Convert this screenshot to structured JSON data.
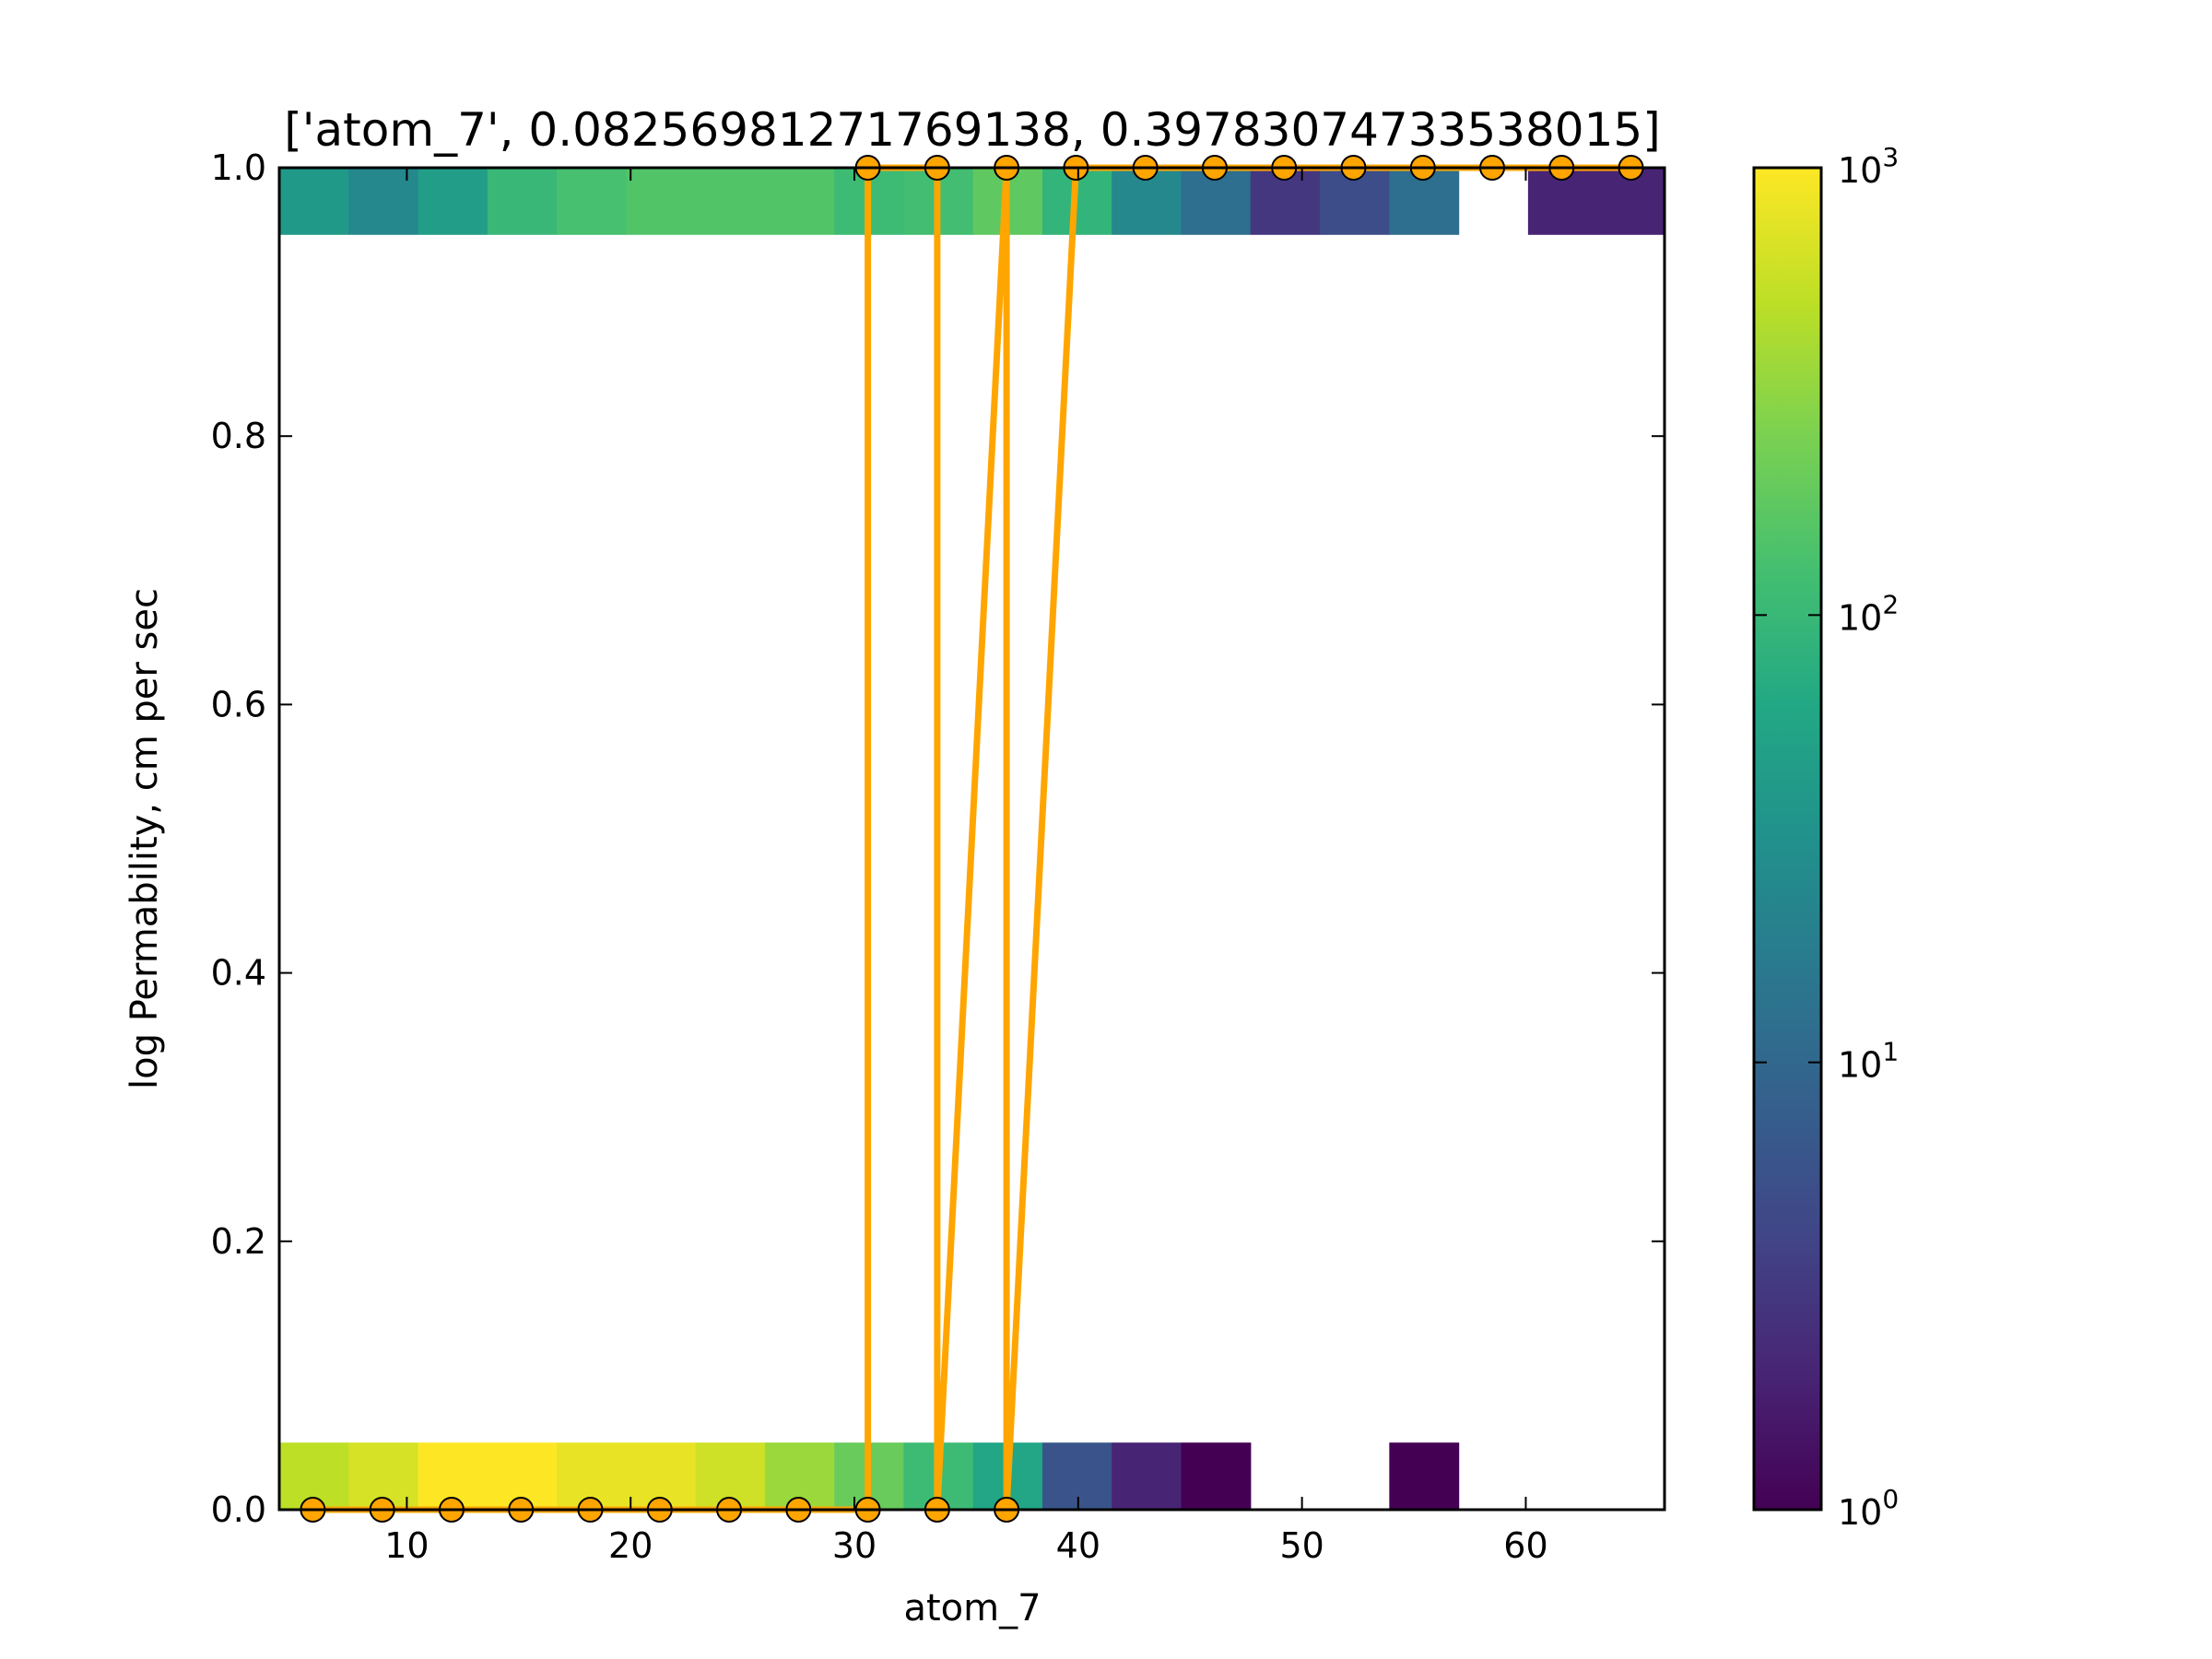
{
  "chart_data": {
    "type": "heatmap",
    "title": "['atom_7', 0.08256981271769138, 0.39783074733538015]",
    "xlabel": "atom_7",
    "ylabel": "log Permability, cm per sec",
    "xlim": [
      4.3,
      66.2
    ],
    "ylim": [
      0.0,
      1.0
    ],
    "x_ticks": [
      {
        "value": 10,
        "label": "10"
      },
      {
        "value": 20,
        "label": "20"
      },
      {
        "value": 30,
        "label": "30"
      },
      {
        "value": 40,
        "label": "40"
      },
      {
        "value": 50,
        "label": "50"
      },
      {
        "value": 60,
        "label": "60"
      }
    ],
    "y_ticks": [
      {
        "value": 0.0,
        "label": "0.0"
      },
      {
        "value": 0.2,
        "label": "0.2"
      },
      {
        "value": 0.4,
        "label": "0.4"
      },
      {
        "value": 0.6,
        "label": "0.6"
      },
      {
        "value": 0.8,
        "label": "0.8"
      },
      {
        "value": 1.0,
        "label": "1.0"
      }
    ],
    "heatmap": {
      "bin_edges_x": [
        4.3,
        7.4,
        10.5,
        13.6,
        16.7,
        19.8,
        22.9,
        26.0,
        29.1,
        32.2,
        35.3,
        38.4,
        41.5,
        44.6,
        47.7,
        50.8,
        53.9,
        57.0,
        60.1,
        63.2,
        66.3
      ],
      "row_bottom": {
        "y_range": [
          0.0,
          0.05
        ],
        "counts": [
          500,
          650,
          1000,
          1000,
          800,
          800,
          600,
          350,
          200,
          110,
          60,
          6,
          2,
          1,
          null,
          null,
          1,
          null,
          null,
          null
        ]
      },
      "row_top": {
        "y_range": [
          0.95,
          1.0
        ],
        "counts": [
          40,
          25,
          45,
          100,
          130,
          150,
          150,
          150,
          110,
          120,
          180,
          90,
          25,
          12,
          3,
          5,
          12,
          null,
          2,
          2
        ]
      },
      "colormap": "viridis",
      "scale": "log"
    },
    "colorbar": {
      "scale": "log",
      "min": 1,
      "max": 1000,
      "ticks": [
        {
          "value": 1,
          "base": "10",
          "exp": "0"
        },
        {
          "value": 10,
          "base": "10",
          "exp": "1"
        },
        {
          "value": 100,
          "base": "10",
          "exp": "2"
        },
        {
          "value": 1000,
          "base": "10",
          "exp": "3"
        }
      ]
    },
    "series": [
      {
        "type": "line",
        "color": "#ffa500",
        "marker": "circle",
        "x": [
          5.8,
          8.9,
          12.0,
          15.1,
          18.2,
          21.3,
          24.4,
          27.5,
          30.6,
          30.6,
          33.7,
          33.7,
          36.8,
          36.8,
          39.9,
          43.0,
          46.1,
          49.2,
          52.3,
          55.4,
          58.5,
          61.6,
          64.7
        ],
        "y": [
          0,
          0,
          0,
          0,
          0,
          0,
          0,
          0,
          0,
          1,
          1,
          0,
          1,
          0,
          1,
          1,
          1,
          1,
          1,
          1,
          1,
          1,
          1
        ]
      }
    ]
  }
}
